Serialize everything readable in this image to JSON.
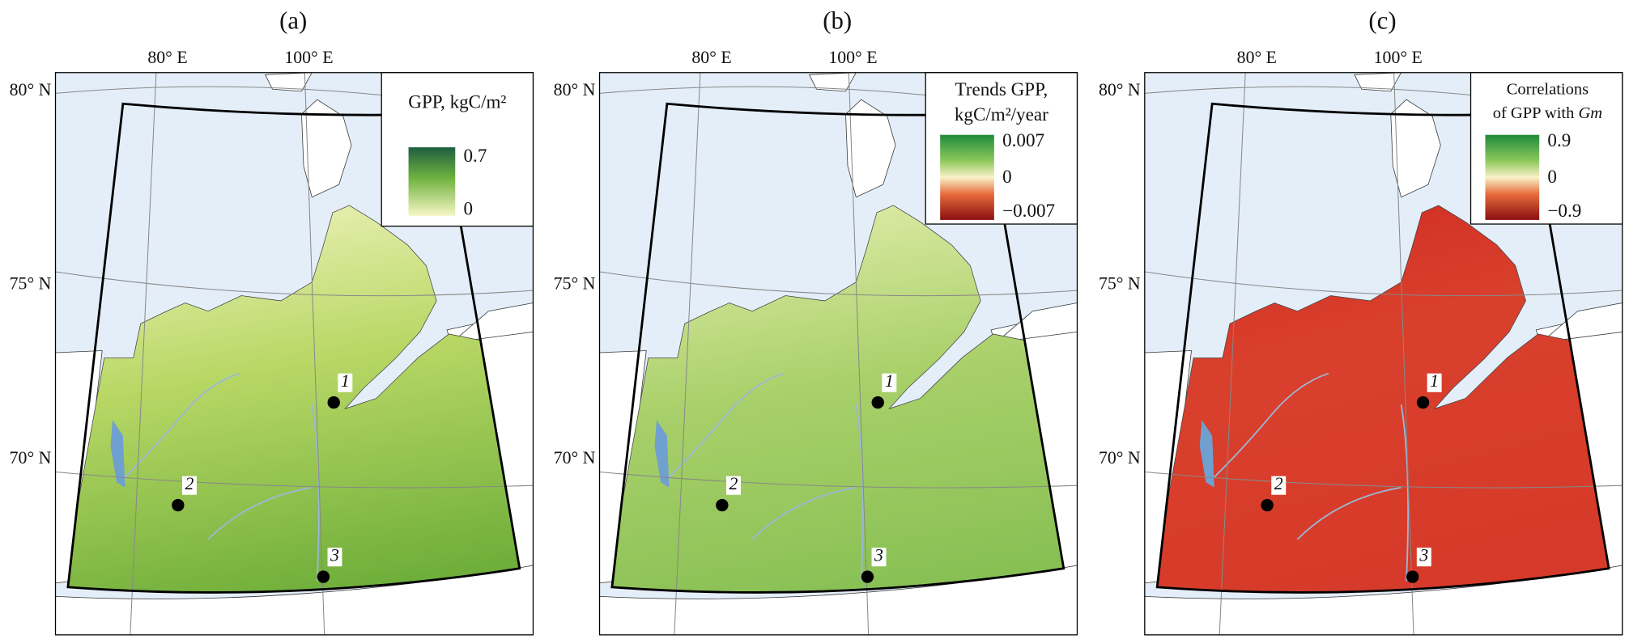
{
  "panels": [
    {
      "label": "(a)",
      "lon_labels": [
        "80° E",
        "100° E"
      ],
      "lat_labels": [
        "80° N",
        "75° N",
        "70° N"
      ],
      "legend": {
        "title": [
          "GPP, kgC/m²"
        ],
        "ticks": [
          "0.7",
          "0"
        ]
      },
      "points": [
        "1",
        "2",
        "3"
      ]
    },
    {
      "label": "(b)",
      "lon_labels": [
        "80° E",
        "100° E"
      ],
      "lat_labels": [
        "80° N",
        "75° N",
        "70° N"
      ],
      "legend": {
        "title": [
          "Trends GPP,",
          "kgC/m²/year"
        ],
        "ticks": [
          "0.007",
          "0",
          "−0.007"
        ]
      },
      "points": [
        "1",
        "2",
        "3"
      ]
    },
    {
      "label": "(c)",
      "lon_labels": [
        "80° E",
        "100° E"
      ],
      "lat_labels": [
        "80° N",
        "75° N",
        "70° N"
      ],
      "legend": {
        "title": [
          "Correlations",
          "of GPP with",
          "Gm"
        ],
        "ticks": [
          "0.9",
          "0",
          "−0.9"
        ]
      },
      "points": [
        "1",
        "2",
        "3"
      ]
    }
  ]
}
